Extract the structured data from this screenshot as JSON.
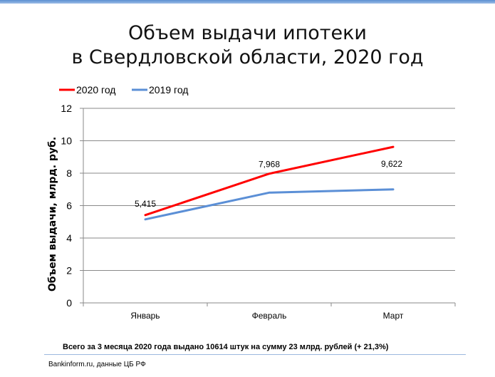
{
  "chart_data": {
    "type": "line",
    "title_lines": [
      "Объем выдачи ипотеки",
      "в Свердловской области, 2020 год"
    ],
    "ylabel": "Объем выдачи, млрд. руб.",
    "xlabel": "",
    "categories": [
      "Январь",
      "Февраль",
      "Март"
    ],
    "ylim": [
      0,
      12
    ],
    "yticks": [
      0,
      2,
      4,
      6,
      8,
      10,
      12
    ],
    "grid": true,
    "legend_position": "top-left",
    "series": [
      {
        "name": "2020 год",
        "color": "#ff0000",
        "values": [
          5.415,
          7.968,
          9.622
        ],
        "labels": [
          "5,415",
          "7,968",
          "9,622"
        ]
      },
      {
        "name": "2019 год",
        "color": "#5b8fd6",
        "values": [
          5.15,
          6.8,
          7.0
        ],
        "labels": []
      }
    ]
  },
  "summary": "Всего за 3 месяца  2020 года  выдано 10614 штук на сумму 23 млрд.  рублей  (+ 21,3%)",
  "footer": "Bankinform.ru,  данные ЦБ РФ"
}
